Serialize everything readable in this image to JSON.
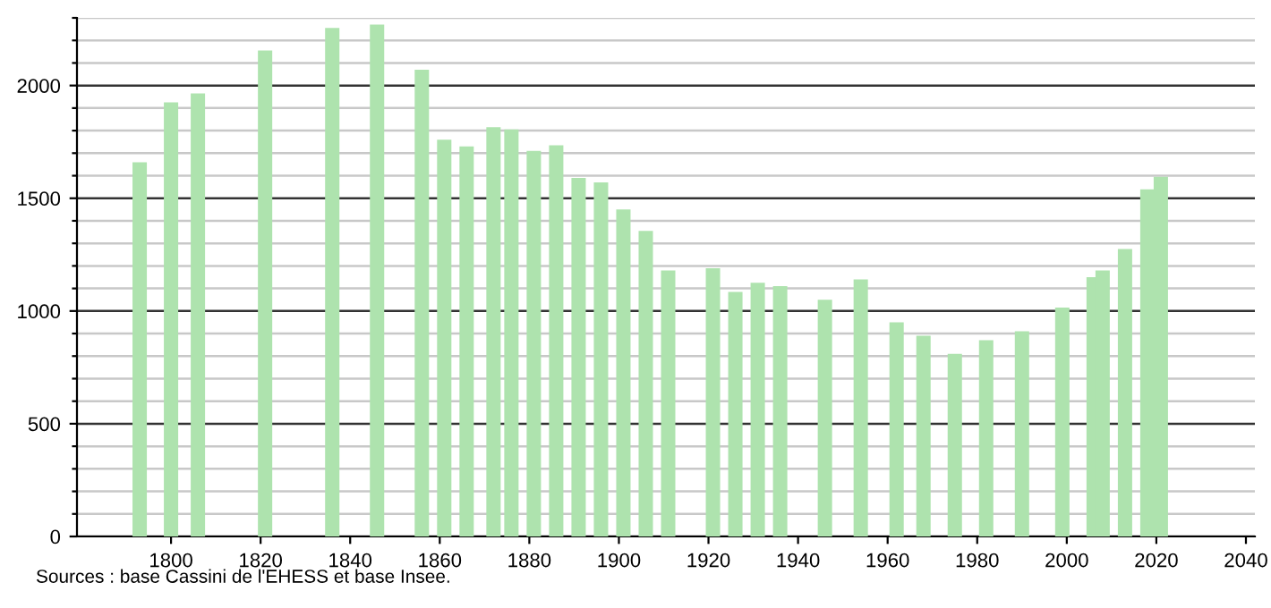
{
  "chart_data": {
    "type": "bar",
    "x": [
      1793,
      1800,
      1806,
      1821,
      1836,
      1846,
      1856,
      1861,
      1866,
      1872,
      1876,
      1881,
      1886,
      1891,
      1896,
      1901,
      1906,
      1911,
      1921,
      1926,
      1931,
      1936,
      1946,
      1954,
      1962,
      1968,
      1975,
      1982,
      1990,
      1999,
      2006,
      2008,
      2013,
      2018,
      2021
    ],
    "values": [
      1660,
      1925,
      1965,
      2155,
      2255,
      2270,
      2070,
      1760,
      1730,
      1815,
      1805,
      1710,
      1735,
      1590,
      1570,
      1450,
      1355,
      1180,
      1190,
      1085,
      1125,
      1110,
      1050,
      1140,
      950,
      890,
      810,
      870,
      910,
      1015,
      1150,
      1180,
      1275,
      1540,
      1595
    ],
    "color": "#aee3ae",
    "xlim": [
      1779,
      2042
    ],
    "xticks": [
      1800,
      1820,
      1840,
      1860,
      1880,
      1900,
      1920,
      1940,
      1960,
      1980,
      2000,
      2020,
      2040
    ],
    "ylim": [
      0,
      2300
    ],
    "yticks": [
      0,
      {
        "value": 100,
        "label": null
      },
      {
        "value": 200,
        "label": null
      },
      {
        "value": 300,
        "label": null
      },
      {
        "value": 400,
        "label": null
      },
      500,
      {
        "value": 600,
        "label": null
      },
      {
        "value": 700,
        "label": null
      },
      {
        "value": 800,
        "label": null
      },
      {
        "value": 900,
        "label": null
      },
      1000,
      {
        "value": 1100,
        "label": null
      },
      {
        "value": 1200,
        "label": null
      },
      {
        "value": 1300,
        "label": null
      },
      {
        "value": 1400,
        "label": null
      },
      1500,
      {
        "value": 1600,
        "label": null
      },
      {
        "value": 1700,
        "label": null
      },
      {
        "value": 1800,
        "label": null
      },
      {
        "value": 1900,
        "label": null
      },
      2000,
      {
        "value": 2100,
        "label": null
      },
      {
        "value": 2200,
        "label": null
      },
      {
        "value": 2300,
        "label": null
      }
    ],
    "grid": "y",
    "annotations": [
      "Sources : base Cassini de l'EHESS et base Insee."
    ]
  }
}
